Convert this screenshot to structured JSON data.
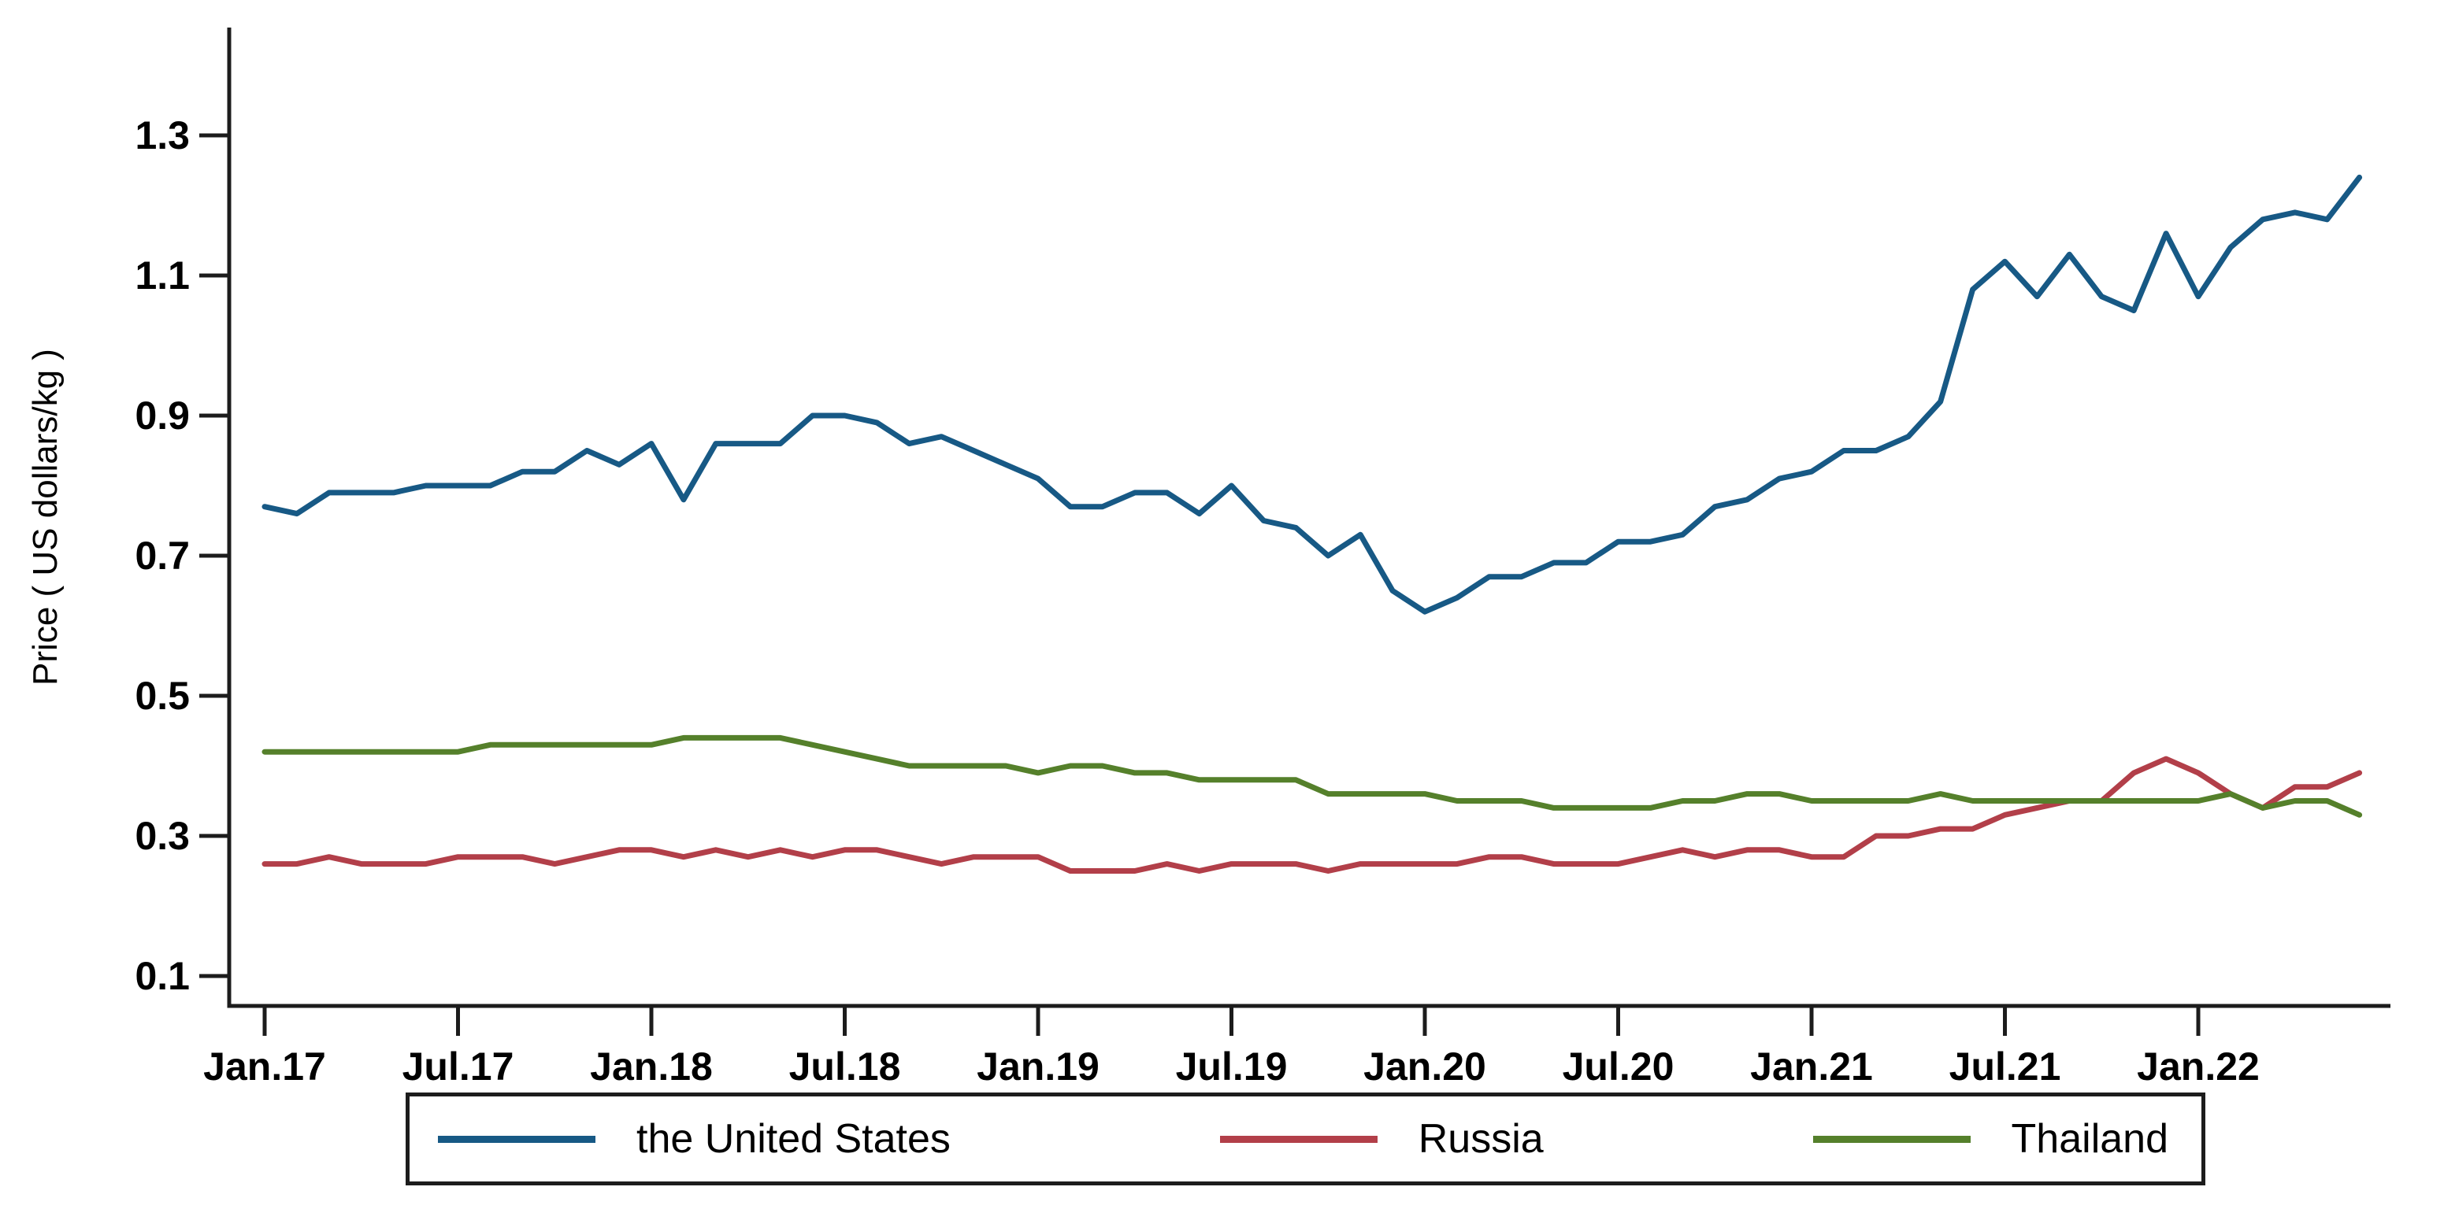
{
  "figure": {
    "y_axis_title": "Price ( US dollars/kg )"
  },
  "chart_data": {
    "type": "line",
    "title": "",
    "xlabel": "",
    "ylabel": "Price ( US dollars/kg )",
    "x_unit": "monthly",
    "x_start_label": "Jan.17",
    "x_end_month": "Jun.22",
    "x_tick_labels": [
      "Jan.17",
      "Jul.17",
      "Jan.18",
      "Jul.18",
      "Jan.19",
      "Jul.19",
      "Jan.20",
      "Jul.20",
      "Jan.21",
      "Jul.21",
      "Jan.22"
    ],
    "x_tick_interval_months": 6,
    "y_ticks": [
      0.1,
      0.3,
      0.5,
      0.7,
      0.9,
      1.1,
      1.3
    ],
    "ylim": [
      0.02,
      1.42
    ],
    "grid": "off",
    "legend_position": "bottom",
    "axis_color": "#1c1c1c",
    "series": [
      {
        "name": "the United States",
        "color": "#175985",
        "values": [
          0.77,
          0.76,
          0.79,
          0.79,
          0.79,
          0.8,
          0.8,
          0.8,
          0.82,
          0.82,
          0.85,
          0.83,
          0.86,
          0.78,
          0.86,
          0.86,
          0.86,
          0.9,
          0.9,
          0.89,
          0.86,
          0.87,
          0.85,
          0.83,
          0.81,
          0.77,
          0.77,
          0.79,
          0.79,
          0.76,
          0.8,
          0.75,
          0.74,
          0.7,
          0.73,
          0.65,
          0.62,
          0.64,
          0.67,
          0.67,
          0.69,
          0.69,
          0.72,
          0.72,
          0.73,
          0.77,
          0.78,
          0.81,
          0.82,
          0.85,
          0.85,
          0.87,
          0.92,
          1.08,
          1.12,
          1.07,
          1.13,
          1.07,
          1.05,
          1.16,
          1.07,
          1.14,
          1.18,
          1.19,
          1.18,
          1.24
        ]
      },
      {
        "name": "Russia",
        "color": "#b23f49",
        "values": [
          0.26,
          0.26,
          0.27,
          0.26,
          0.26,
          0.26,
          0.27,
          0.27,
          0.27,
          0.26,
          0.27,
          0.28,
          0.28,
          0.27,
          0.28,
          0.27,
          0.28,
          0.27,
          0.28,
          0.28,
          0.27,
          0.26,
          0.27,
          0.27,
          0.27,
          0.25,
          0.25,
          0.25,
          0.26,
          0.25,
          0.26,
          0.26,
          0.26,
          0.25,
          0.26,
          0.26,
          0.26,
          0.26,
          0.27,
          0.27,
          0.26,
          0.26,
          0.26,
          0.27,
          0.28,
          0.27,
          0.28,
          0.28,
          0.27,
          0.27,
          0.3,
          0.3,
          0.31,
          0.31,
          0.33,
          0.34,
          0.35,
          0.35,
          0.39,
          0.41,
          0.39,
          0.36,
          0.34,
          0.37,
          0.37,
          0.39
        ]
      },
      {
        "name": "Thailand",
        "color": "#55802b",
        "values": [
          0.42,
          0.42,
          0.42,
          0.42,
          0.42,
          0.42,
          0.42,
          0.43,
          0.43,
          0.43,
          0.43,
          0.43,
          0.43,
          0.44,
          0.44,
          0.44,
          0.44,
          0.43,
          0.42,
          0.41,
          0.4,
          0.4,
          0.4,
          0.4,
          0.39,
          0.4,
          0.4,
          0.39,
          0.39,
          0.38,
          0.38,
          0.38,
          0.38,
          0.36,
          0.36,
          0.36,
          0.36,
          0.35,
          0.35,
          0.35,
          0.34,
          0.34,
          0.34,
          0.34,
          0.35,
          0.35,
          0.36,
          0.36,
          0.35,
          0.35,
          0.35,
          0.35,
          0.36,
          0.35,
          0.35,
          0.35,
          0.35,
          0.35,
          0.35,
          0.35,
          0.35,
          0.36,
          0.34,
          0.35,
          0.35,
          0.33
        ]
      }
    ]
  },
  "legend": {
    "items": [
      {
        "label": "the United States"
      },
      {
        "label": "Russia"
      },
      {
        "label": "Thailand"
      }
    ]
  }
}
